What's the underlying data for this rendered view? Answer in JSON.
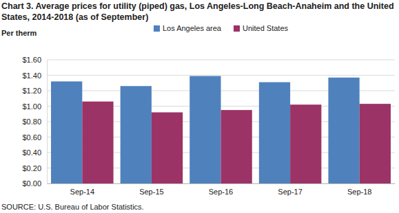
{
  "chart_data": {
    "type": "bar",
    "title": "Chart 3. Average prices for utility (piped) gas, Los Angeles-Long Beach-Anaheim and the United States, 2014-2018 (as of September)",
    "y_label": "Per therm",
    "source": "SOURCE: U.S. Bureau of Labor Statistics.",
    "categories": [
      "Sep-14",
      "Sep-15",
      "Sep-16",
      "Sep-17",
      "Sep-18"
    ],
    "series": [
      {
        "name": "Los Angeles area",
        "color": "#4f81bd",
        "values": [
          1.32,
          1.26,
          1.39,
          1.31,
          1.37
        ]
      },
      {
        "name": "United States",
        "color": "#9b3366",
        "values": [
          1.06,
          0.92,
          0.95,
          1.02,
          1.03
        ]
      }
    ],
    "ylim": [
      0,
      1.6
    ],
    "yticks": [
      {
        "value": 0,
        "label": "$0.00"
      },
      {
        "value": 0.2,
        "label": "$0.20"
      },
      {
        "value": 0.4,
        "label": "$0.40"
      },
      {
        "value": 0.6,
        "label": "$0.60"
      },
      {
        "value": 0.8,
        "label": "$0.80"
      },
      {
        "value": 1.0,
        "label": "$1.00"
      },
      {
        "value": 1.2,
        "label": "$1.20"
      },
      {
        "value": 1.4,
        "label": "$1.40"
      },
      {
        "value": 1.6,
        "label": "$1.60"
      }
    ],
    "grid": true,
    "legend": "top"
  }
}
